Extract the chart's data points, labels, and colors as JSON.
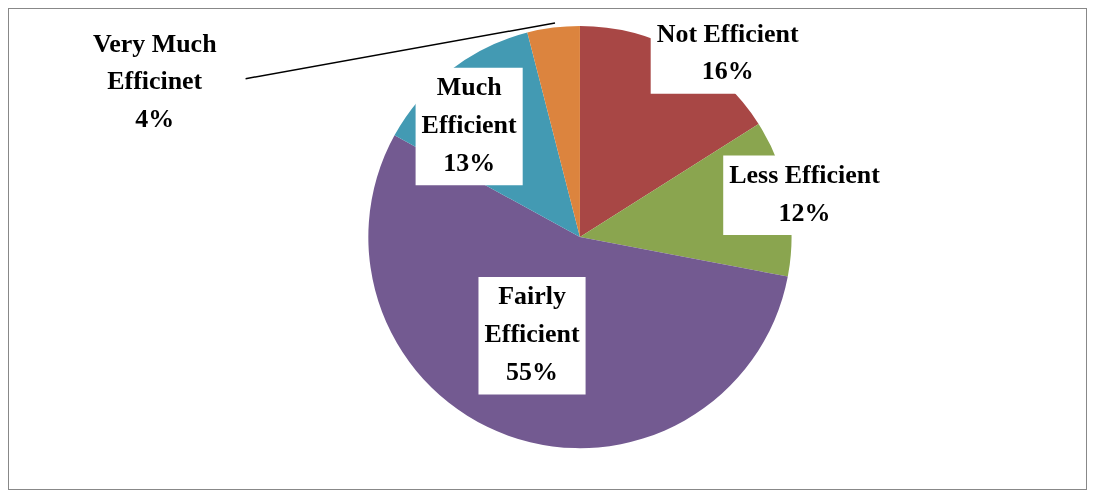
{
  "chart_data": {
    "type": "pie",
    "categories": [
      "Not Efficient",
      "Less Efficient",
      "Fairly Efficient",
      "Much Efficient",
      "Very Much Efficinet"
    ],
    "values": [
      16,
      12,
      55,
      13,
      4
    ],
    "value_labels": [
      "16%",
      "12%",
      "55%",
      "13%",
      "4%"
    ],
    "colors": [
      "#a84745",
      "#8aa54f",
      "#735a91",
      "#439ab3",
      "#dc843e"
    ],
    "legend": false
  }
}
